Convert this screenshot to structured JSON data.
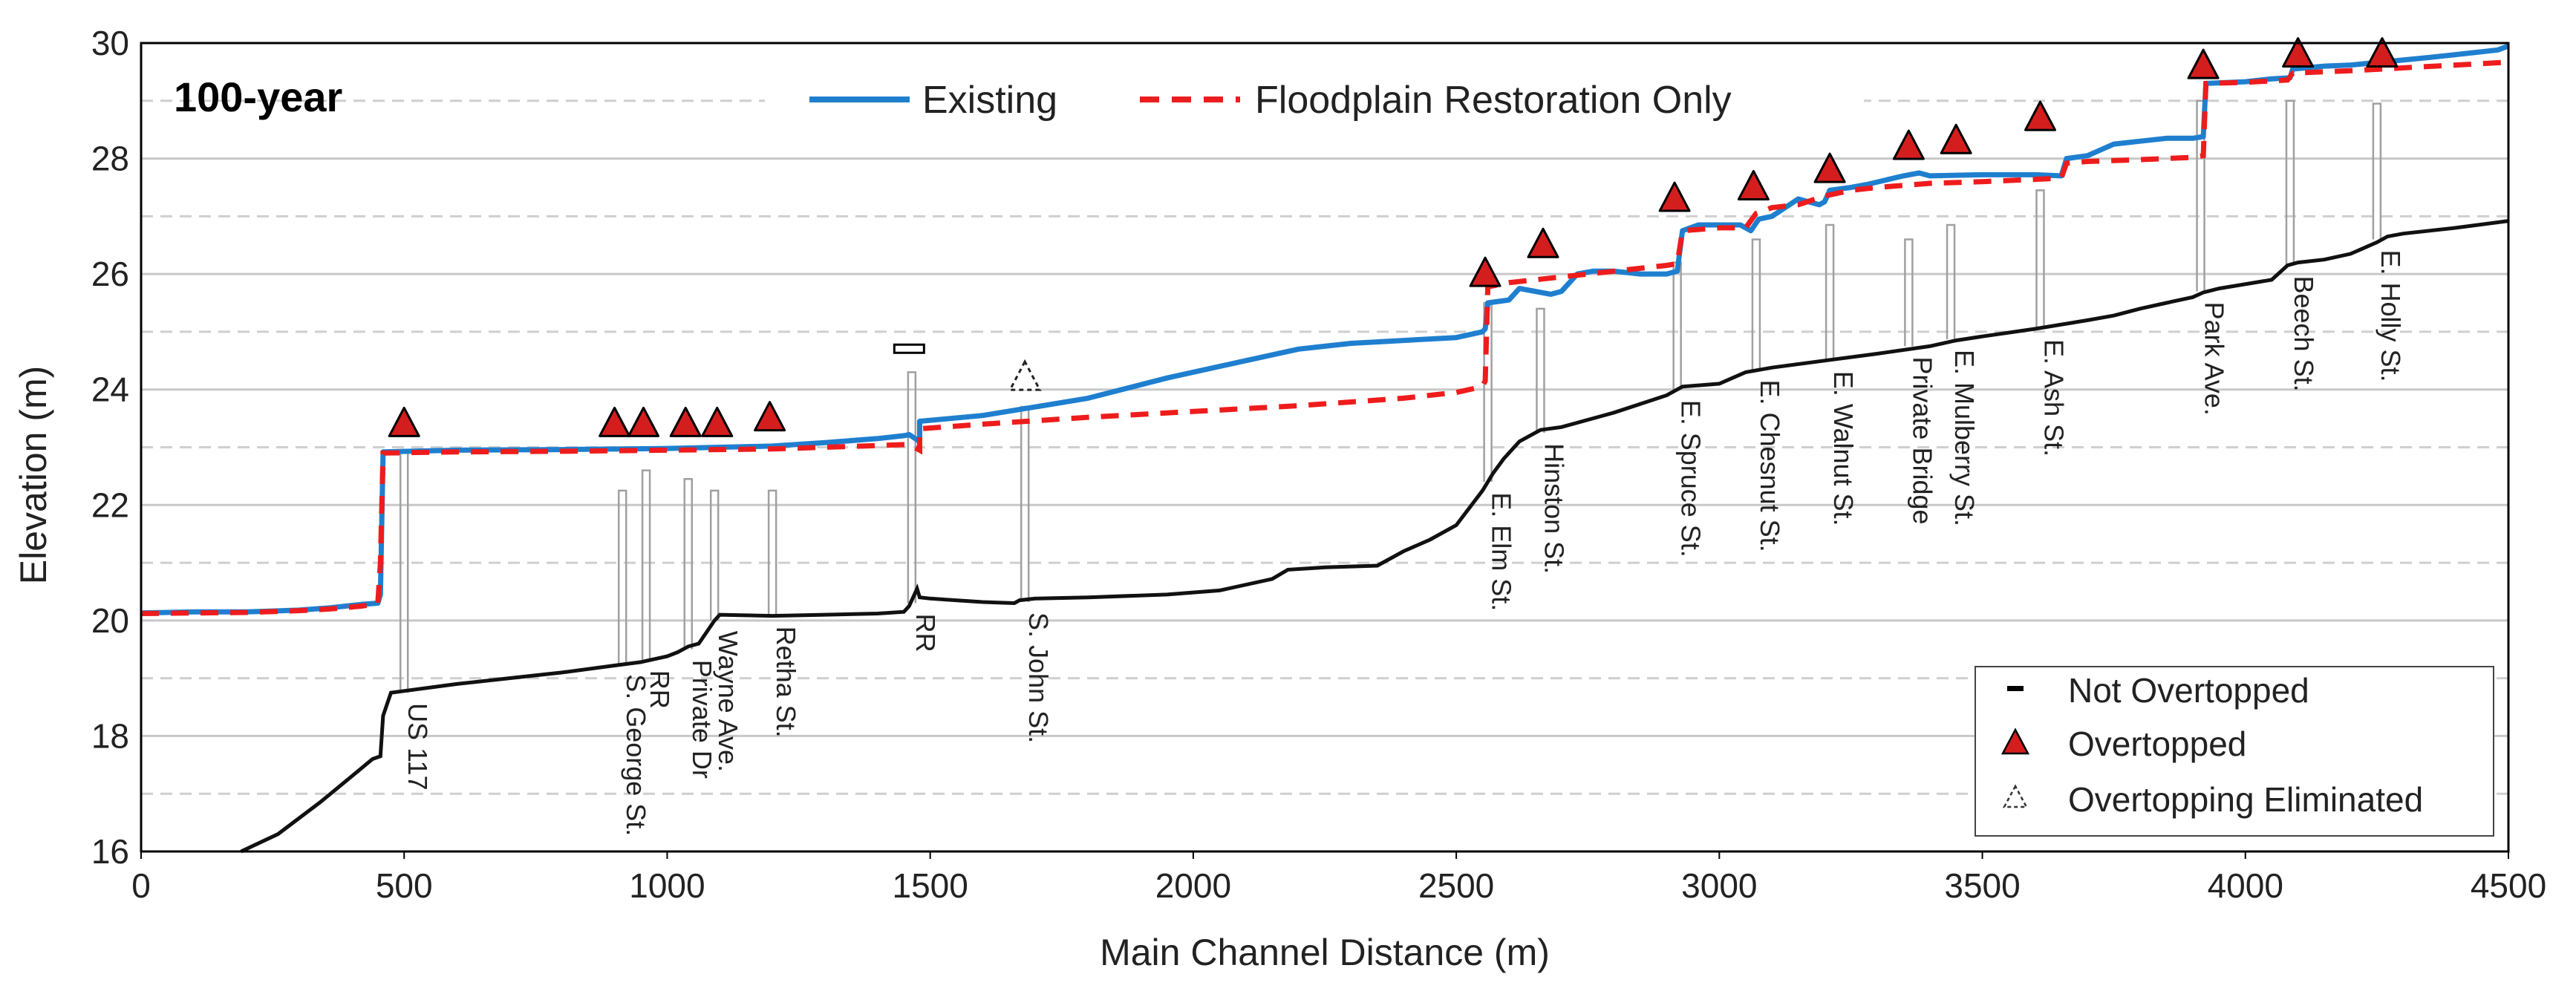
{
  "chart_data": {
    "type": "line",
    "panel_label": "100-year",
    "xlabel": "Main Channel Distance (m)",
    "ylabel": "Elevation (m)",
    "xlim": [
      0,
      4500
    ],
    "ylim": [
      16,
      30
    ],
    "x_ticks": [
      "0",
      "500",
      "1000",
      "1500",
      "2000",
      "2500",
      "3000",
      "3500",
      "4000",
      "4500"
    ],
    "y_ticks": [
      "16",
      "18",
      "20",
      "22",
      "24",
      "26",
      "28",
      "30"
    ],
    "minor_gridlines_y": [
      17,
      19,
      21,
      23,
      25,
      27,
      29
    ],
    "grid": true,
    "colors": {
      "existing": "#1f7fcf",
      "restoration": "#ee1c1c",
      "bed": "#111111",
      "marker_fill": "#d41e1e",
      "grid_major": "#c8c8c8",
      "grid_minor": "#cfcfcf",
      "structure": "#a0a0a0"
    },
    "legend_series": {
      "existing": "Existing",
      "restoration": "Floodplain Restoration Only"
    },
    "legend_markers": {
      "not_overtopped": "Not Overtopped",
      "overtopped": "Overtopped",
      "eliminated": "Overtopping Eliminated"
    },
    "series": [
      {
        "name": "Existing",
        "key": "existing",
        "points": [
          [
            0,
            20.13
          ],
          [
            100,
            20.15
          ],
          [
            200,
            20.15
          ],
          [
            300,
            20.18
          ],
          [
            360,
            20.22
          ],
          [
            420,
            20.28
          ],
          [
            450,
            20.3
          ],
          [
            455,
            20.45
          ],
          [
            460,
            22.92
          ],
          [
            600,
            22.95
          ],
          [
            800,
            22.96
          ],
          [
            1000,
            22.98
          ],
          [
            1100,
            23.0
          ],
          [
            1200,
            23.02
          ],
          [
            1300,
            23.08
          ],
          [
            1400,
            23.15
          ],
          [
            1450,
            23.2
          ],
          [
            1460,
            23.22
          ],
          [
            1480,
            23.1
          ],
          [
            1480,
            23.45
          ],
          [
            1600,
            23.55
          ],
          [
            1700,
            23.7
          ],
          [
            1800,
            23.85
          ],
          [
            1950,
            24.2
          ],
          [
            2100,
            24.5
          ],
          [
            2200,
            24.7
          ],
          [
            2300,
            24.8
          ],
          [
            2400,
            24.85
          ],
          [
            2500,
            24.9
          ],
          [
            2550,
            25.0
          ],
          [
            2555,
            25.05
          ],
          [
            2560,
            25.5
          ],
          [
            2600,
            25.55
          ],
          [
            2620,
            25.75
          ],
          [
            2650,
            25.7
          ],
          [
            2680,
            25.65
          ],
          [
            2700,
            25.7
          ],
          [
            2730,
            26.0
          ],
          [
            2760,
            26.05
          ],
          [
            2800,
            26.05
          ],
          [
            2850,
            26.0
          ],
          [
            2900,
            26.0
          ],
          [
            2920,
            26.05
          ],
          [
            2930,
            26.75
          ],
          [
            2960,
            26.85
          ],
          [
            3000,
            26.85
          ],
          [
            3040,
            26.85
          ],
          [
            3060,
            26.75
          ],
          [
            3075,
            26.95
          ],
          [
            3100,
            27.0
          ],
          [
            3150,
            27.3
          ],
          [
            3190,
            27.2
          ],
          [
            3200,
            27.25
          ],
          [
            3210,
            27.45
          ],
          [
            3250,
            27.5
          ],
          [
            3280,
            27.55
          ],
          [
            3350,
            27.7
          ],
          [
            3380,
            27.75
          ],
          [
            3400,
            27.7
          ],
          [
            3500,
            27.72
          ],
          [
            3600,
            27.72
          ],
          [
            3650,
            27.7
          ],
          [
            3660,
            28.0
          ],
          [
            3700,
            28.05
          ],
          [
            3750,
            28.25
          ],
          [
            3800,
            28.3
          ],
          [
            3850,
            28.35
          ],
          [
            3900,
            28.35
          ],
          [
            3920,
            28.38
          ],
          [
            3925,
            29.3
          ],
          [
            4000,
            29.33
          ],
          [
            4050,
            29.38
          ],
          [
            4085,
            29.4
          ],
          [
            4090,
            29.55
          ],
          [
            4150,
            29.6
          ],
          [
            4200,
            29.62
          ],
          [
            4270,
            29.68
          ],
          [
            4350,
            29.75
          ],
          [
            4420,
            29.82
          ],
          [
            4480,
            29.88
          ],
          [
            4500,
            29.95
          ]
        ]
      },
      {
        "name": "Floodplain Restoration Only",
        "key": "restoration",
        "points": [
          [
            0,
            20.12
          ],
          [
            100,
            20.13
          ],
          [
            200,
            20.14
          ],
          [
            300,
            20.17
          ],
          [
            360,
            20.2
          ],
          [
            420,
            20.25
          ],
          [
            440,
            20.28
          ],
          [
            450,
            20.3
          ],
          [
            455,
            21.0
          ],
          [
            460,
            22.9
          ],
          [
            600,
            22.92
          ],
          [
            800,
            22.93
          ],
          [
            1000,
            22.95
          ],
          [
            1200,
            22.97
          ],
          [
            1300,
            23.0
          ],
          [
            1400,
            23.03
          ],
          [
            1460,
            23.05
          ],
          [
            1480,
            22.95
          ],
          [
            1480,
            23.32
          ],
          [
            1600,
            23.4
          ],
          [
            1800,
            23.52
          ],
          [
            2000,
            23.62
          ],
          [
            2200,
            23.72
          ],
          [
            2400,
            23.85
          ],
          [
            2500,
            23.95
          ],
          [
            2550,
            24.05
          ],
          [
            2555,
            24.15
          ],
          [
            2560,
            25.78
          ],
          [
            2600,
            25.85
          ],
          [
            2700,
            25.95
          ],
          [
            2800,
            26.05
          ],
          [
            2900,
            26.15
          ],
          [
            2920,
            26.18
          ],
          [
            2930,
            26.75
          ],
          [
            3000,
            26.8
          ],
          [
            3050,
            26.8
          ],
          [
            3070,
            27.05
          ],
          [
            3100,
            27.15
          ],
          [
            3150,
            27.2
          ],
          [
            3200,
            27.35
          ],
          [
            3250,
            27.45
          ],
          [
            3300,
            27.5
          ],
          [
            3400,
            27.57
          ],
          [
            3500,
            27.6
          ],
          [
            3600,
            27.64
          ],
          [
            3650,
            27.66
          ],
          [
            3660,
            27.92
          ],
          [
            3700,
            27.95
          ],
          [
            3800,
            27.98
          ],
          [
            3900,
            28.02
          ],
          [
            3920,
            28.05
          ],
          [
            3925,
            29.3
          ],
          [
            4000,
            29.32
          ],
          [
            4080,
            29.36
          ],
          [
            4090,
            29.48
          ],
          [
            4200,
            29.52
          ],
          [
            4300,
            29.57
          ],
          [
            4400,
            29.62
          ],
          [
            4500,
            29.67
          ]
        ]
      },
      {
        "name": "Channel bed",
        "key": "bed",
        "points": [
          [
            190,
            16.0
          ],
          [
            260,
            16.3
          ],
          [
            340,
            16.85
          ],
          [
            400,
            17.3
          ],
          [
            440,
            17.6
          ],
          [
            455,
            17.65
          ],
          [
            460,
            18.35
          ],
          [
            475,
            18.75
          ],
          [
            500,
            18.78
          ],
          [
            600,
            18.9
          ],
          [
            700,
            19.0
          ],
          [
            800,
            19.1
          ],
          [
            900,
            19.22
          ],
          [
            950,
            19.28
          ],
          [
            960,
            19.3
          ],
          [
            1000,
            19.38
          ],
          [
            1020,
            19.45
          ],
          [
            1040,
            19.55
          ],
          [
            1060,
            19.6
          ],
          [
            1090,
            20.0
          ],
          [
            1100,
            20.1
          ],
          [
            1200,
            20.08
          ],
          [
            1300,
            20.1
          ],
          [
            1400,
            20.12
          ],
          [
            1450,
            20.15
          ],
          [
            1460,
            20.25
          ],
          [
            1475,
            20.55
          ],
          [
            1480,
            20.4
          ],
          [
            1500,
            20.38
          ],
          [
            1600,
            20.32
          ],
          [
            1660,
            20.3
          ],
          [
            1670,
            20.35
          ],
          [
            1700,
            20.38
          ],
          [
            1800,
            20.4
          ],
          [
            1950,
            20.45
          ],
          [
            2050,
            20.52
          ],
          [
            2150,
            20.72
          ],
          [
            2180,
            20.88
          ],
          [
            2250,
            20.92
          ],
          [
            2350,
            20.95
          ],
          [
            2400,
            21.2
          ],
          [
            2450,
            21.4
          ],
          [
            2500,
            21.65
          ],
          [
            2550,
            22.25
          ],
          [
            2570,
            22.55
          ],
          [
            2590,
            22.8
          ],
          [
            2620,
            23.1
          ],
          [
            2660,
            23.3
          ],
          [
            2700,
            23.35
          ],
          [
            2800,
            23.6
          ],
          [
            2900,
            23.9
          ],
          [
            2930,
            24.05
          ],
          [
            3000,
            24.1
          ],
          [
            3050,
            24.3
          ],
          [
            3100,
            24.38
          ],
          [
            3200,
            24.5
          ],
          [
            3300,
            24.62
          ],
          [
            3400,
            24.75
          ],
          [
            3450,
            24.85
          ],
          [
            3500,
            24.92
          ],
          [
            3600,
            25.05
          ],
          [
            3700,
            25.2
          ],
          [
            3750,
            25.28
          ],
          [
            3800,
            25.4
          ],
          [
            3850,
            25.5
          ],
          [
            3900,
            25.6
          ],
          [
            3920,
            25.68
          ],
          [
            3950,
            25.75
          ],
          [
            4050,
            25.9
          ],
          [
            4080,
            26.15
          ],
          [
            4100,
            26.2
          ],
          [
            4150,
            26.25
          ],
          [
            4200,
            26.35
          ],
          [
            4250,
            26.55
          ],
          [
            4270,
            26.65
          ],
          [
            4300,
            26.7
          ],
          [
            4400,
            26.8
          ],
          [
            4500,
            26.92
          ]
        ]
      }
    ],
    "structures": [
      {
        "name": "US 117",
        "x": 500,
        "top": 22.9,
        "bottom": 18.75
      },
      {
        "name": "S. George St.",
        "x": 915,
        "top": 22.25,
        "bottom": 19.25
      },
      {
        "name": "RR",
        "x": 960,
        "top": 22.6,
        "bottom": 19.32
      },
      {
        "name": "Private Dr",
        "x": 1040,
        "top": 22.45,
        "bottom": 19.5
      },
      {
        "name": "Wayne Ave.",
        "x": 1090,
        "top": 22.25,
        "bottom": 20.0
      },
      {
        "name": "Retha St.",
        "x": 1200,
        "top": 22.25,
        "bottom": 20.08
      },
      {
        "name": "RR",
        "x": 1465,
        "top": 24.3,
        "bottom": 20.3
      },
      {
        "name": "S. John St.",
        "x": 1680,
        "top": 23.7,
        "bottom": 20.32
      },
      {
        "name": "E. Elm St.",
        "x": 2560,
        "top": 25.5,
        "bottom": 22.4
      },
      {
        "name": "Hinston St.",
        "x": 2660,
        "top": 25.4,
        "bottom": 23.25
      },
      {
        "name": "E. Spruce St.",
        "x": 2920,
        "top": 26.2,
        "bottom": 24.0
      },
      {
        "name": "E. Chesnut St.",
        "x": 3070,
        "top": 26.6,
        "bottom": 24.35
      },
      {
        "name": "E. Walnut St.",
        "x": 3210,
        "top": 26.85,
        "bottom": 24.5
      },
      {
        "name": "Private Bridge",
        "x": 3360,
        "top": 26.6,
        "bottom": 24.75
      },
      {
        "name": "E. Mulberry St.",
        "x": 3440,
        "top": 26.85,
        "bottom": 24.87
      },
      {
        "name": "E. Ash St.",
        "x": 3610,
        "top": 27.45,
        "bottom": 25.05
      },
      {
        "name": "Park Ave.",
        "x": 3915,
        "top": 29.0,
        "bottom": 25.7
      },
      {
        "name": "Beech St.",
        "x": 4085,
        "top": 29.0,
        "bottom": 26.15
      },
      {
        "name": "E. Holly St.",
        "x": 4250,
        "top": 28.95,
        "bottom": 26.6
      }
    ],
    "markers": [
      {
        "x": 500,
        "y": 23.4,
        "type": "overtopped"
      },
      {
        "x": 900,
        "y": 23.4,
        "type": "overtopped"
      },
      {
        "x": 955,
        "y": 23.4,
        "type": "overtopped"
      },
      {
        "x": 1035,
        "y": 23.4,
        "type": "overtopped"
      },
      {
        "x": 1095,
        "y": 23.4,
        "type": "overtopped"
      },
      {
        "x": 1195,
        "y": 23.5,
        "type": "overtopped"
      },
      {
        "x": 1460,
        "y": 24.7,
        "type": "not_overtopped"
      },
      {
        "x": 1680,
        "y": 24.2,
        "type": "eliminated"
      },
      {
        "x": 2555,
        "y": 26.0,
        "type": "overtopped"
      },
      {
        "x": 2665,
        "y": 26.5,
        "type": "overtopped"
      },
      {
        "x": 2915,
        "y": 27.3,
        "type": "overtopped"
      },
      {
        "x": 3065,
        "y": 27.5,
        "type": "overtopped"
      },
      {
        "x": 3210,
        "y": 27.8,
        "type": "overtopped"
      },
      {
        "x": 3360,
        "y": 28.2,
        "type": "overtopped"
      },
      {
        "x": 3450,
        "y": 28.3,
        "type": "overtopped"
      },
      {
        "x": 3610,
        "y": 28.7,
        "type": "overtopped"
      },
      {
        "x": 3920,
        "y": 29.6,
        "type": "overtopped"
      },
      {
        "x": 4100,
        "y": 29.8,
        "type": "overtopped"
      },
      {
        "x": 4260,
        "y": 29.8,
        "type": "overtopped"
      }
    ]
  }
}
